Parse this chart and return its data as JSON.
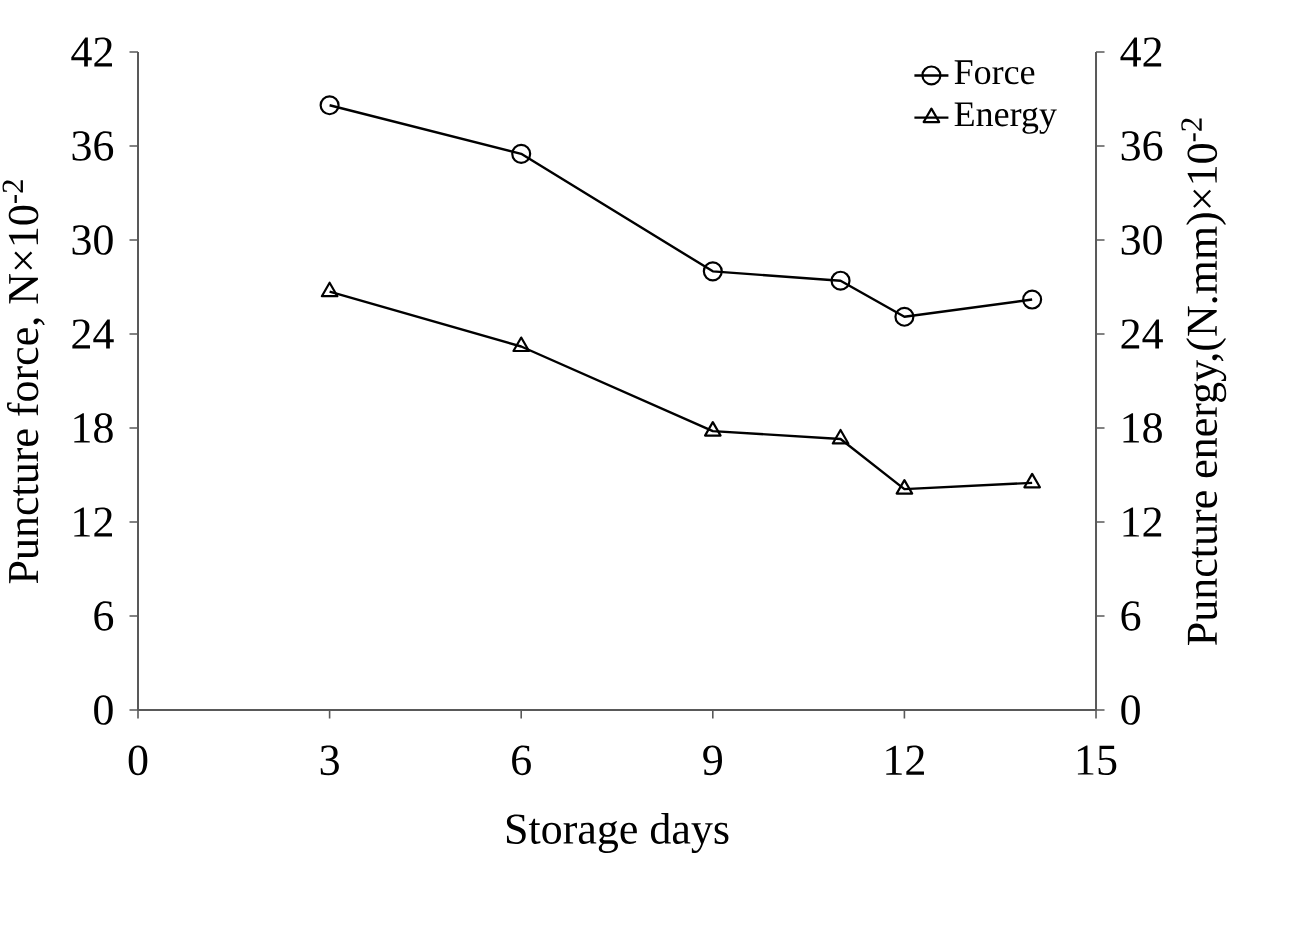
{
  "chart_data": {
    "type": "line",
    "xlabel": "Storage days",
    "ylabel": "Puncture force, N×10$^{-2}$",
    "y2label": "Puncture energy,(N.mm)×10$^{-2}$",
    "x": [
      3,
      6,
      9,
      11,
      12,
      14
    ],
    "series": [
      {
        "name": "Force",
        "color": "#000000",
        "marker": "circle",
        "values": [
          38.6,
          35.5,
          28.0,
          27.4,
          25.1,
          26.2
        ]
      },
      {
        "name": "Energy",
        "color": "#000000",
        "marker": "triangle",
        "axis": "y2",
        "values": [
          26.7,
          23.2,
          17.8,
          17.3,
          14.1,
          14.5
        ]
      }
    ],
    "xlim": [
      0,
      15
    ],
    "xticks": [
      0,
      3,
      6,
      9,
      12,
      15
    ],
    "ylim": [
      0,
      42
    ],
    "yticks": [
      0,
      6,
      12,
      18,
      24,
      30,
      36,
      42
    ],
    "y2lim": [
      0,
      42
    ],
    "y2ticks": [
      0,
      6,
      12,
      18,
      24,
      30,
      36,
      42
    ],
    "legend": "top right",
    "grid": false,
    "line_style": "solid"
  }
}
